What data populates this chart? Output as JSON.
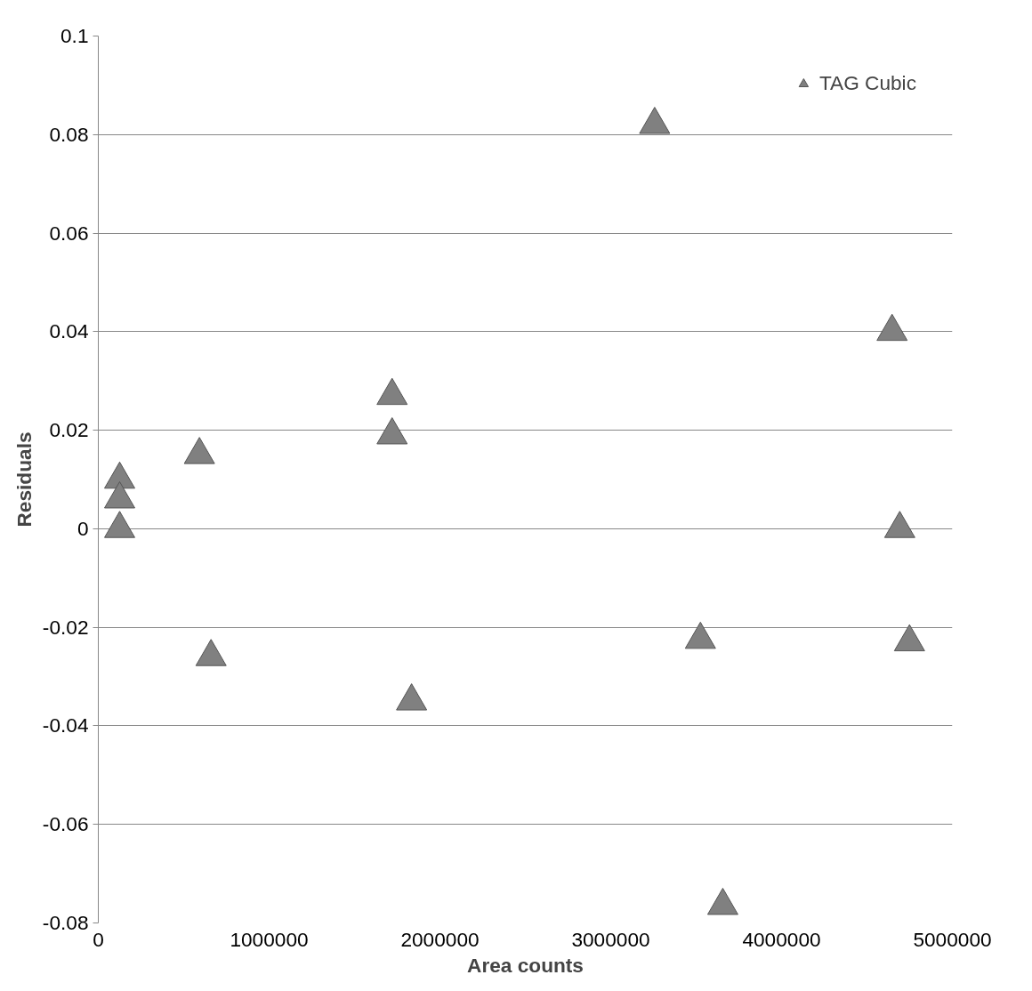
{
  "chart_data": {
    "type": "scatter",
    "xlabel": "Area counts",
    "ylabel": "Residuals",
    "series": [
      {
        "name": "TAG Cubic",
        "color": "#808080",
        "x": [
          125000,
          125000,
          125000,
          592000,
          1720000,
          1720000,
          660000,
          1834000,
          3257000,
          3525000,
          3656000,
          4647000,
          4692000,
          4749000
        ],
        "values": [
          0.01,
          0.006,
          0.0,
          0.015,
          0.027,
          0.019,
          -0.026,
          -0.035,
          0.082,
          -0.0225,
          -0.0765,
          0.04,
          0.0,
          -0.023
        ]
      }
    ],
    "xlim": [
      0,
      5000000
    ],
    "ylim": [
      -0.08,
      0.1
    ],
    "xticks": [
      0,
      1000000,
      2000000,
      3000000,
      4000000,
      5000000
    ],
    "yticks": [
      -0.08,
      -0.06,
      -0.04,
      -0.02,
      0,
      0.02,
      0.04,
      0.06,
      0.08,
      0.1
    ],
    "grid": "y",
    "legend": "top right",
    "marker": "triangle"
  }
}
